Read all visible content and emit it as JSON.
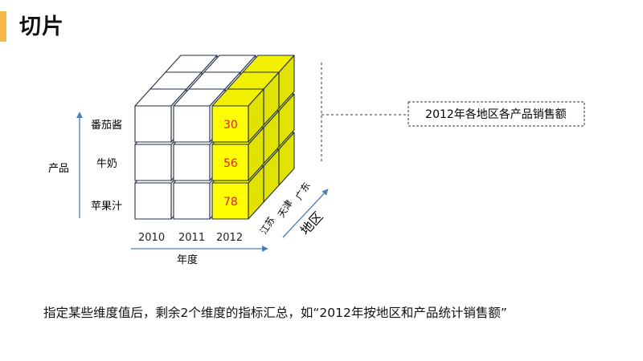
{
  "slide": {
    "title": "切片",
    "caption": "指定某些维度值后，剩余2个维度的指标汇总，如“2012年按地区和产品统计销售额”"
  },
  "diagram": {
    "axes": {
      "product_label": "产品",
      "year_label": "年度",
      "region_label": "地区"
    },
    "products": [
      "番茄酱",
      "牛奶",
      "苹果汁"
    ],
    "years": [
      "2010",
      "2011",
      "2012"
    ],
    "regions": [
      "江苏",
      "天津",
      "广东"
    ],
    "slice_year": "2012",
    "slice_values": [
      "30",
      "56",
      "78"
    ],
    "callout": "2012年各地区各产品销售额"
  },
  "colors": {
    "accent": "#f5b94a",
    "slice_fill": "#ffff00",
    "slice_side": "#e2e200",
    "slice_top": "#f0f000",
    "cube_edge": "#1f2d44",
    "value_text": "#e02020",
    "axis_arrow": "#4a7ebb"
  }
}
